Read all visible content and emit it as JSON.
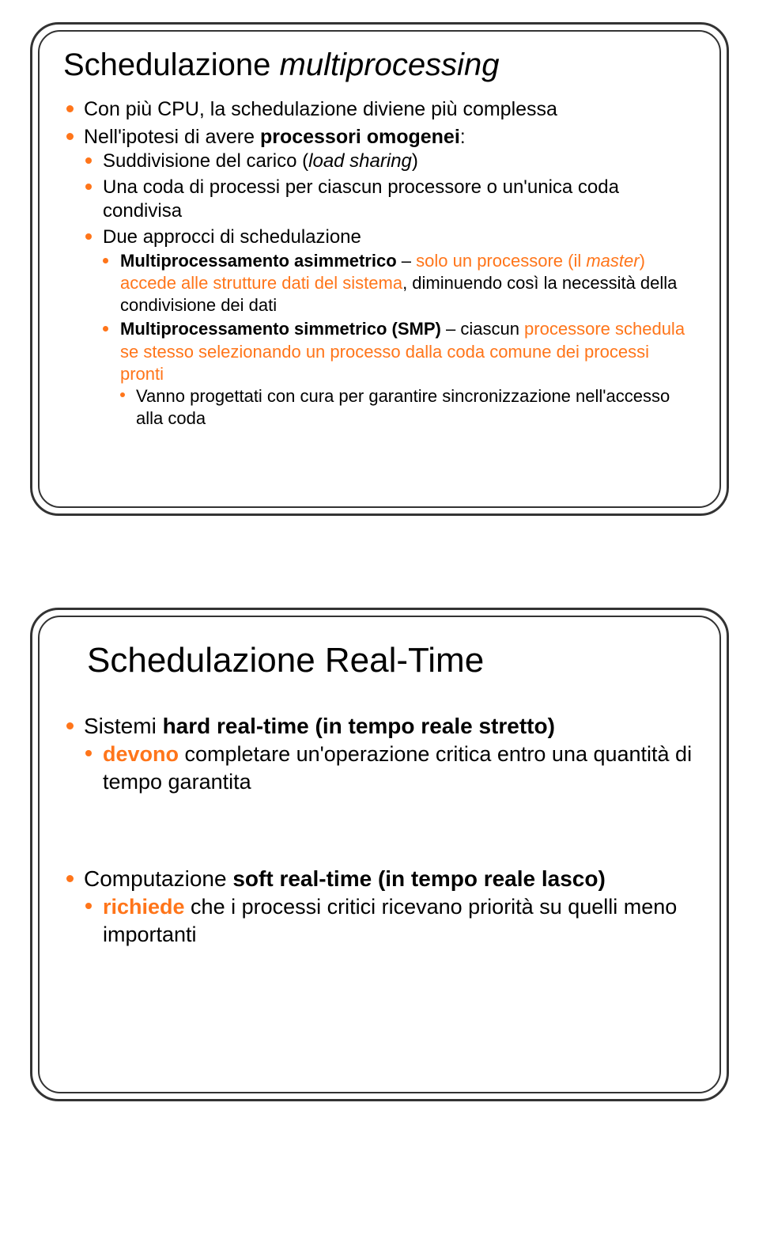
{
  "colors": {
    "bullet": "#ff751a",
    "highlight_text": "#ff751a",
    "border": "#333333",
    "text": "#000000",
    "background": "#ffffff"
  },
  "typography": {
    "family": "Arial",
    "title_size_pt": 32,
    "body_size_pt": 19
  },
  "slide1": {
    "title_plain": "Schedulazione ",
    "title_italic": "multiprocessing",
    "b1": "Con più CPU, la schedulazione  diviene più complessa",
    "b2_pre": "Nell'ipotesi di avere ",
    "b2_bold": "processori omogenei",
    "b2_post": ":",
    "b2_1_pre": "Suddivisione del carico (",
    "b2_1_it": "load sharing",
    "b2_1_post": ")",
    "b2_2": "Una coda di processi per ciascun processore o un'unica coda condivisa",
    "b2_3": "Due approcci di schedulazione",
    "b2_3_1_bold": "Multiprocessamento asimmetrico",
    "b2_3_1_mid": " – ",
    "b2_3_1_or1": "solo un processore (il ",
    "b2_3_1_or_it": "master",
    "b2_3_1_or2": ") accede alle strutture dati del sistema",
    "b2_3_1_tail": ", diminuendo così la necessità della condivisione dei dati",
    "b2_3_2_bold": "Multiprocessamento simmetrico (SMP)",
    "b2_3_2_mid": " – ciascun ",
    "b2_3_2_or": "processore schedula se stesso selezionando un processo dalla coda comune dei processi pronti",
    "b2_3_2_1": "Vanno progettati con cura per garantire sincronizzazione nell'accesso alla coda"
  },
  "slide2": {
    "title": "Schedulazione Real-Time",
    "b1_pre": "Sistemi ",
    "b1_bold": "hard real-time (in tempo reale stretto)",
    "b1_1_bold": "devono",
    "b1_1_rest": " completare un'operazione critica entro una quantità di tempo garantita",
    "b2_pre": "Computazione ",
    "b2_bold": "soft real-time (in tempo reale lasco)",
    "b2_1_bold": "richiede",
    "b2_1_rest": " che i processi critici ricevano priorità su quelli meno importanti"
  }
}
